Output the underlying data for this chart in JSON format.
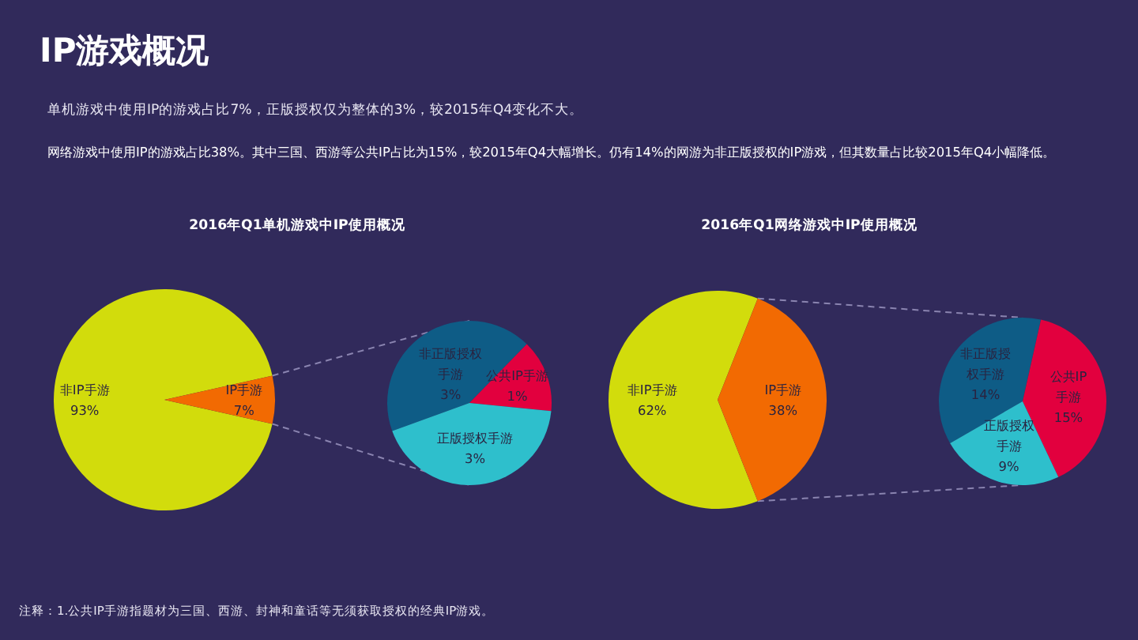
{
  "chart_data": [
    {
      "type": "other",
      "title": "IP游戏概况",
      "annotations": [
        "单机游戏中使用IP的游戏占比7%，正版授权仅为整体的3%，较2015年Q4变化不大。",
        "网络游戏中使用IP的游戏占比38%。其中三国、西游等公共IP占比为15%，较2015年Q4大幅增长。仍有14%的网游为非正版授权的IP游戏，但其数量占比较2015年Q4小幅降低。",
        "注释：1.公共IP手游指题材为三国、西游、封神和童话等无须获取授权的经典IP游戏。"
      ]
    },
    {
      "type": "pie",
      "title": "2016年Q1单机游戏中IP使用概况",
      "categories": [
        "非IP手游",
        "IP手游"
      ],
      "values": [
        93,
        7
      ],
      "value_labels": [
        "93%",
        "7%"
      ],
      "colors": [
        "#d2dc0c",
        "#f26a02"
      ]
    },
    {
      "type": "pie",
      "categories": [
        "非正版授权手游",
        "公共IP手游",
        "正版授权手游"
      ],
      "values": [
        3,
        1,
        3
      ],
      "value_labels": [
        "3%",
        "1%",
        "3%"
      ],
      "colors": [
        "#0e5c86",
        "#e2003e",
        "#2ebfcc"
      ]
    },
    {
      "type": "pie",
      "title": "2016年Q1网络游戏中IP使用概况",
      "categories": [
        "非IP手游",
        "IP手游"
      ],
      "values": [
        62,
        38
      ],
      "value_labels": [
        "62%",
        "38%"
      ],
      "colors": [
        "#d2dc0c",
        "#f26a02"
      ]
    },
    {
      "type": "pie",
      "categories": [
        "非正版授权手游",
        "公共IP手游",
        "正版授权手游"
      ],
      "values": [
        14,
        15,
        9
      ],
      "value_labels": [
        "14%",
        "15%",
        "9%"
      ],
      "colors": [
        "#0e5c86",
        "#e2003e",
        "#2ebfcc"
      ]
    }
  ]
}
